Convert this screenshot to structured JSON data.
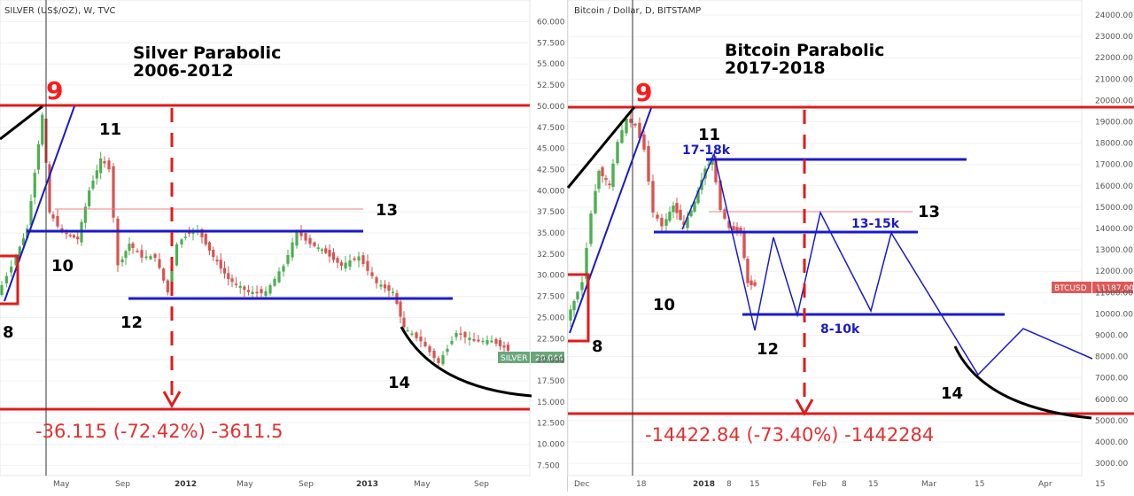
{
  "colors": {
    "red": "#e01b1b",
    "blue": "#1a1acc",
    "black": "#000000",
    "up_candle": "#4caf50",
    "down_candle": "#d9534f",
    "silver_badge": "#6aa67a",
    "btc_badge": "#e05858"
  },
  "panels": [
    {
      "id": "silver",
      "header": "SILVER (US$/OZ), W, TVC",
      "title_line1": "Silver Parabolic",
      "title_line2": "2006-2012",
      "drop_label": "-36.115 (-72.42%) -3611.5",
      "price_badge": {
        "symbol": "SILVER",
        "value": "20.044"
      },
      "wave_labels": [
        "9",
        "11",
        "10",
        "12",
        "13",
        "14",
        "8"
      ],
      "zone_labels": [],
      "x_axis_labels": [
        "May",
        "Sep",
        "2012",
        "May",
        "Sep",
        "2013",
        "May",
        "Sep"
      ],
      "y_axis_labels": [
        "60.000",
        "57.500",
        "55.000",
        "52.500",
        "50.000",
        "47.500",
        "45.000",
        "42.500",
        "40.000",
        "37.500",
        "35.000",
        "32.500",
        "30.000",
        "27.500",
        "25.000",
        "22.500",
        "20.000",
        "17.500",
        "15.000",
        "12.500",
        "10.000",
        "7.500"
      ]
    },
    {
      "id": "btc",
      "header": "Bitcoin / Dollar, D, BITSTAMP",
      "title_line1": "Bitcoin Parabolic",
      "title_line2": "2017-2018",
      "drop_label": "-14422.84 (-73.40%) -1442284",
      "price_badge": {
        "symbol": "BTCUSD",
        "value": "11187.00"
      },
      "wave_labels": [
        "9",
        "11",
        "10",
        "12",
        "13",
        "14",
        "8"
      ],
      "zone_labels": [
        "17-18k",
        "13-15k",
        "8-10k"
      ],
      "x_axis_labels": [
        "Dec",
        "18",
        "2018",
        "8",
        "15",
        "Feb",
        "8",
        "15",
        "Mar",
        "15",
        "Apr",
        "15"
      ],
      "y_axis_labels": [
        "24000.00",
        "23000.00",
        "22000.00",
        "21000.00",
        "20000.00",
        "19000.00",
        "18000.00",
        "17000.00",
        "16000.00",
        "15000.00",
        "14000.00",
        "13000.00",
        "12000.00",
        "11000.00",
        "10000.00",
        "9000.00",
        "8000.00",
        "7000.00",
        "6000.00",
        "5000.00",
        "4000.00",
        "3000.00"
      ]
    }
  ],
  "chart_data": [
    {
      "type": "line",
      "title": "Silver Parabolic 2006-2012",
      "xlabel": "",
      "ylabel": "",
      "ylim": [
        5,
        61
      ],
      "x": [
        "2011-02",
        "2011-04",
        "2011-05",
        "2011-07",
        "2011-08",
        "2011-09",
        "2011-10",
        "2011-12",
        "2012-02",
        "2012-04",
        "2012-06",
        "2012-08",
        "2012-10",
        "2012-12",
        "2013-02",
        "2013-04",
        "2013-06",
        "2013-07",
        "2013-08",
        "2013-10"
      ],
      "series": [
        {
          "values": [
            28.5,
            38.0,
            48.5,
            34.5,
            40.5,
            43.0,
            30.5,
            28.5,
            35.0,
            32.0,
            27.5,
            28.0,
            35.0,
            31.0,
            30.0,
            25.0,
            19.0,
            20.5,
            24.5,
            21.0
          ]
        }
      ],
      "ref_lines": {
        "top": 50.0,
        "bottom": 13.8,
        "resistance_upper": 37.6,
        "resistance": 35.0,
        "support": 27.0
      },
      "annotations": [
        "9",
        "11",
        "10",
        "12",
        "13",
        "14",
        "8",
        "-36.115 (-72.42%) -3611.5"
      ]
    },
    {
      "type": "line",
      "title": "Bitcoin Parabolic 2017-2018",
      "xlabel": "",
      "ylabel": "",
      "ylim": [
        2500,
        24500
      ],
      "x": [
        "2017-12-01",
        "2017-12-07",
        "2017-12-12",
        "2017-12-17",
        "2017-12-22",
        "2017-12-26",
        "2018-01-01",
        "2018-01-06",
        "2018-01-10",
        "2018-01-14",
        "2018-01-17"
      ],
      "series": [
        {
          "values": [
            10500,
            15000,
            16800,
            19500,
            14000,
            15800,
            13500,
            17000,
            14500,
            13500,
            11100
          ]
        }
      ],
      "projection": {
        "values": [
          11100,
          9200,
          13700,
          9900,
          14700,
          9900,
          13800,
          6900,
          9200,
          7800
        ]
      },
      "ref_lines": {
        "top": 19666,
        "bottom": 5500,
        "resistance_upper": 14700,
        "zone_17_18k": 17200,
        "zone_13_15k": 13800,
        "zone_8_10k": 9800
      },
      "annotations": [
        "9",
        "11",
        "10",
        "12",
        "13",
        "14",
        "8",
        "17-18k",
        "13-15k",
        "8-10k",
        "-14422.84 (-73.40%) -1442284"
      ]
    }
  ]
}
